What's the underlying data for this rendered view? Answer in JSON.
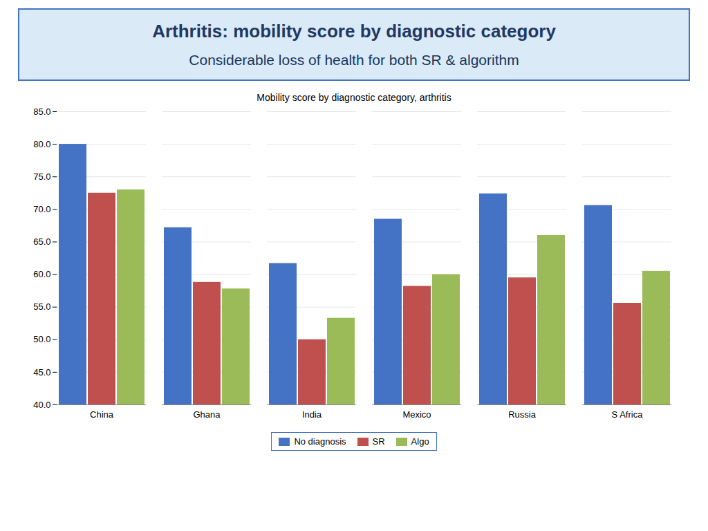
{
  "chart_data": {
    "type": "bar",
    "title": "Arthritis: mobility score by diagnostic category",
    "subtitle": "Considerable loss of health for both SR & algorithm",
    "chart_title": "Mobility score  by diagnostic category, arthritis",
    "categories": [
      "China",
      "Ghana",
      "India",
      "Mexico",
      "Russia",
      "S Africa"
    ],
    "series": [
      {
        "name": "No diagnosis",
        "color": "#4472C4",
        "values": [
          80.0,
          67.2,
          61.7,
          68.5,
          72.4,
          70.6
        ]
      },
      {
        "name": "SR",
        "color": "#C0504D",
        "values": [
          72.5,
          58.8,
          50.0,
          58.2,
          59.5,
          55.6
        ]
      },
      {
        "name": "Algo",
        "color": "#9BBB59",
        "values": [
          73.0,
          57.8,
          53.3,
          60.0,
          66.0,
          60.5
        ]
      }
    ],
    "ylim": [
      40.0,
      85.0
    ],
    "yticks": [
      {
        "value": 40.0,
        "label": "40.0"
      },
      {
        "value": 45.0,
        "label": "45.0"
      },
      {
        "value": 50.0,
        "label": "50.0"
      },
      {
        "value": 55.0,
        "label": "55.0"
      },
      {
        "value": 60.0,
        "label": "60.0"
      },
      {
        "value": 65.0,
        "label": "65.0"
      },
      {
        "value": 70.0,
        "label": "70.0"
      },
      {
        "value": 75.0,
        "label": "75.0"
      },
      {
        "value": 80.0,
        "label": "80.0"
      },
      {
        "value": 85.0,
        "label": "85.0"
      }
    ],
    "grid": true,
    "legend": "bottom"
  }
}
